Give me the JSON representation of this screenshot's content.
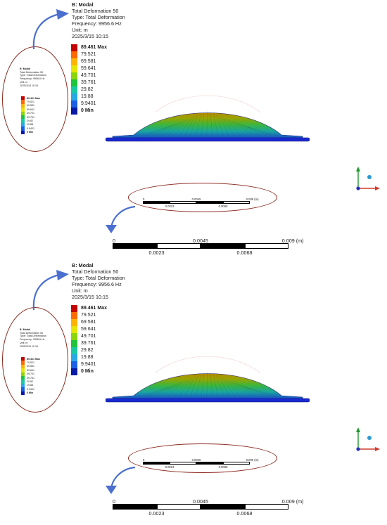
{
  "header": {
    "title": "B: Modal",
    "lines": [
      "Total Deformation 50",
      "Type: Total Deformation",
      "Frequency: 9956.6 Hz",
      "Unit: m",
      "2025/3/15 10:15"
    ]
  },
  "legend": {
    "entries": [
      {
        "label": "89.461 Max",
        "color": "#c40000",
        "bold": true
      },
      {
        "label": "79.521",
        "color": "#ff6a00"
      },
      {
        "label": "69.581",
        "color": "#ffb400"
      },
      {
        "label": "59.641",
        "color": "#e6e600"
      },
      {
        "label": "49.701",
        "color": "#8ad60a"
      },
      {
        "label": "39.761",
        "color": "#1fc43a"
      },
      {
        "label": "29.82",
        "color": "#19c9a6"
      },
      {
        "label": "19.88",
        "color": "#29a8e6"
      },
      {
        "label": "9.9401",
        "color": "#1a5fe6"
      },
      {
        "label": "0 Min",
        "color": "#0a1aa8",
        "bold": true
      }
    ]
  },
  "scale": {
    "zero": "0",
    "mid_top": "0.0045",
    "end": "0.009 (m)",
    "q1": "0.0023",
    "q3": "0.0068"
  },
  "colors": {
    "accent_outline": "#8b2a1f",
    "arrow": "#4a6fcf"
  }
}
